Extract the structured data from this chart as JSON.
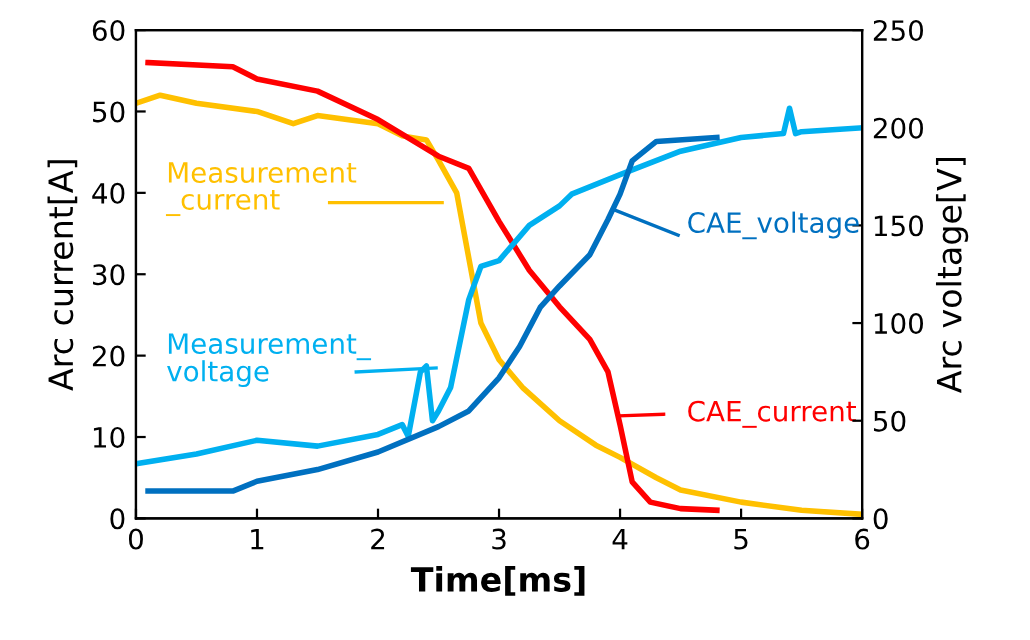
{
  "chart_data": {
    "type": "line",
    "xlabel": "Time[ms]",
    "ylabel": "Arc current[A]",
    "y2label": "Arc voltage[V]",
    "xlim": [
      0,
      6
    ],
    "xticks": [
      0,
      1,
      2,
      3,
      4,
      5,
      6
    ],
    "ylim": [
      0,
      60
    ],
    "yticks": [
      0,
      10,
      20,
      30,
      40,
      50,
      60
    ],
    "y2lim": [
      0,
      250
    ],
    "y2ticks": [
      0,
      50,
      100,
      150,
      200,
      250
    ],
    "grid": false,
    "legend": "right",
    "marker": "none",
    "line_style": "solid",
    "series": [
      {
        "name": "Measurement_current",
        "color": "#ffc000",
        "axis": "y",
        "x": [
          0,
          0.2,
          0.5,
          1.0,
          1.3,
          1.5,
          2.0,
          2.2,
          2.4,
          2.5,
          2.65,
          2.75,
          2.85,
          3.0,
          3.2,
          3.5,
          3.8,
          4.0,
          4.3,
          4.5,
          5.0,
          5.5,
          6.0
        ],
        "values": [
          51,
          52,
          51,
          50,
          48.5,
          49.5,
          48.5,
          47,
          46.5,
          44,
          40,
          32,
          24,
          19.5,
          16,
          12,
          9,
          7.5,
          5,
          3.5,
          2,
          1,
          0.5
        ]
      },
      {
        "name": "CAE_current",
        "color": "#ff0000",
        "axis": "y",
        "x": [
          0.1,
          0.8,
          1.0,
          1.5,
          2.0,
          2.5,
          2.75,
          3.0,
          3.25,
          3.5,
          3.75,
          3.9,
          4.0,
          4.1,
          4.25,
          4.5,
          4.8
        ],
        "values": [
          56,
          55.5,
          54,
          52.5,
          49,
          44.5,
          43,
          36.5,
          30.5,
          26,
          22,
          18,
          11.5,
          4.5,
          2,
          1.2,
          1
        ]
      },
      {
        "name": "Measurement_voltage",
        "color": "#00b0f0",
        "axis": "y2",
        "x": [
          0,
          0.5,
          1.0,
          1.5,
          2.0,
          2.2,
          2.25,
          2.35,
          2.4,
          2.45,
          2.5,
          2.6,
          2.75,
          2.85,
          3.0,
          3.25,
          3.5,
          3.6,
          4.0,
          4.5,
          5.0,
          5.35,
          5.4,
          5.45,
          5.5,
          6.0
        ],
        "values": [
          28,
          33,
          40,
          37,
          43,
          48,
          42,
          75,
          78,
          50,
          55,
          67,
          112,
          129,
          132,
          150,
          160,
          166,
          176,
          188,
          195,
          197,
          210,
          197,
          198,
          200
        ]
      },
      {
        "name": "CAE_voltage",
        "color": "#0070c0",
        "axis": "y2",
        "x": [
          0.1,
          0.8,
          1.0,
          1.5,
          2.0,
          2.5,
          2.75,
          3.0,
          3.17,
          3.34,
          3.5,
          3.75,
          3.9,
          4.0,
          4.1,
          4.3,
          4.8
        ],
        "values": [
          14,
          14,
          19,
          25,
          34,
          47,
          55,
          72,
          88,
          108,
          119,
          135,
          153,
          166,
          183,
          193,
          195
        ]
      }
    ]
  }
}
